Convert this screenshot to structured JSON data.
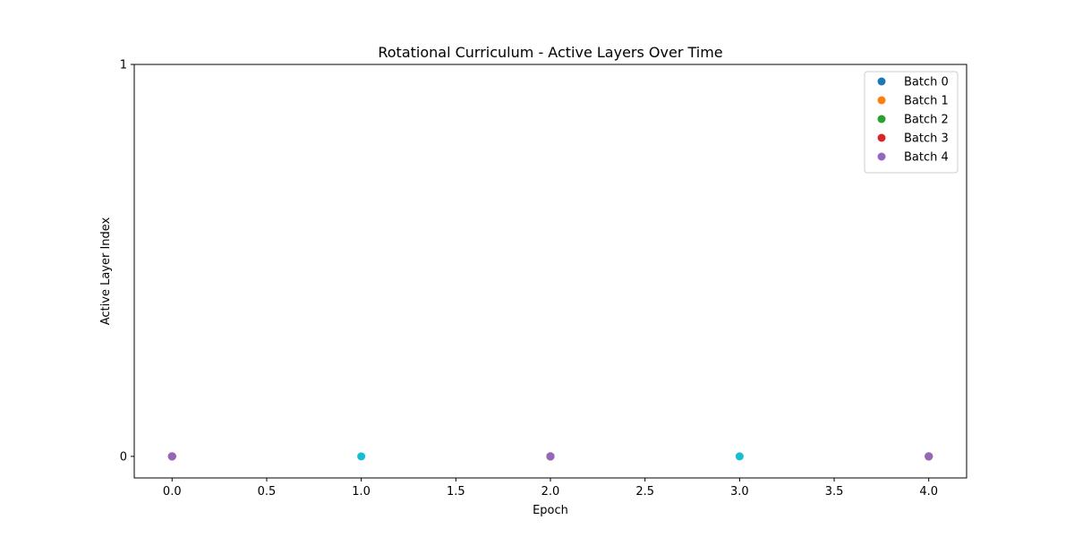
{
  "chart_data": {
    "type": "scatter",
    "title": "Rotational Curriculum - Active Layers Over Time",
    "xlabel": "Epoch",
    "ylabel": "Active Layer Index",
    "xlim": [
      -0.2,
      4.2
    ],
    "ylim": [
      -0.055,
      1.0
    ],
    "xticks": [
      0.0,
      0.5,
      1.0,
      1.5,
      2.0,
      2.5,
      3.0,
      3.5,
      4.0
    ],
    "xtick_labels": [
      "0.0",
      "0.5",
      "1.0",
      "1.5",
      "2.0",
      "2.5",
      "3.0",
      "3.5",
      "4.0"
    ],
    "yticks": [
      0,
      1
    ],
    "ytick_labels": [
      "0",
      "1"
    ],
    "grid": false,
    "legend_position": "top-right",
    "series": [
      {
        "name": "Batch 0",
        "color": "#1f77b4",
        "legend": true,
        "x": [
          0,
          2,
          4
        ],
        "y": [
          0,
          0,
          0
        ]
      },
      {
        "name": "Batch 1",
        "color": "#ff7f0e",
        "legend": true,
        "x": [
          0,
          2,
          4
        ],
        "y": [
          0,
          0,
          0
        ]
      },
      {
        "name": "Batch 2",
        "color": "#2ca02c",
        "legend": true,
        "x": [
          0,
          2,
          4
        ],
        "y": [
          0,
          0,
          0
        ]
      },
      {
        "name": "Batch 3",
        "color": "#d62728",
        "legend": true,
        "x": [
          0,
          2,
          4
        ],
        "y": [
          0,
          0,
          0
        ]
      },
      {
        "name": "Batch 4",
        "color": "#9467bd",
        "legend": true,
        "x": [
          0,
          2,
          4
        ],
        "y": [
          0,
          0,
          0
        ]
      },
      {
        "name": "",
        "color": "#17becf",
        "legend": false,
        "x": [
          1,
          3
        ],
        "y": [
          0,
          0
        ]
      }
    ]
  }
}
